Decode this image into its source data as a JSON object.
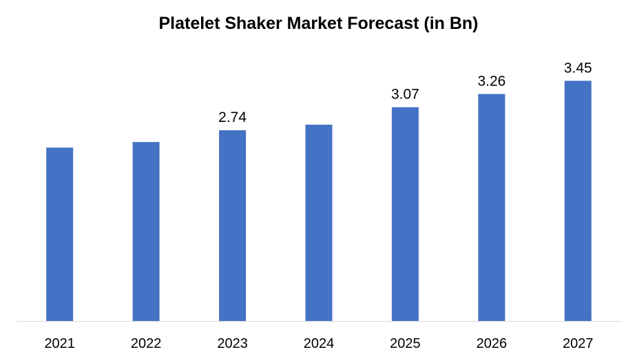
{
  "chart_data": {
    "type": "bar",
    "title": "Platelet Shaker Market Forecast (in Bn)",
    "xlabel": "",
    "ylabel": "",
    "categories": [
      "2021",
      "2022",
      "2023",
      "2024",
      "2025",
      "2026",
      "2027"
    ],
    "values": [
      2.49,
      2.57,
      2.74,
      2.82,
      3.07,
      3.26,
      3.45
    ],
    "data_labels": [
      "",
      "",
      "2.74",
      "",
      "3.07",
      "3.26",
      "3.45"
    ],
    "ylim": [
      0,
      3.72
    ],
    "grid": false,
    "legend": "none",
    "bar_color": "#4472C4",
    "axis_color": "#D9D9D9"
  }
}
